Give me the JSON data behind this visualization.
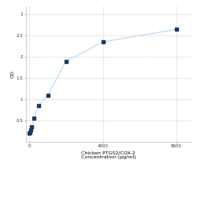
{
  "x": [
    0,
    31.25,
    62.5,
    125,
    250,
    500,
    1000,
    2000,
    4000,
    8000
  ],
  "y": [
    0.2,
    0.23,
    0.27,
    0.35,
    0.55,
    0.85,
    1.1,
    1.9,
    2.35,
    2.65
  ],
  "line_color": "#b8d8f0",
  "marker_color": "#1a3a6b",
  "marker_size": 3,
  "marker_style": "s",
  "ylabel": "OD",
  "xlabel_line1": "Chicken PTGS2/COX-2",
  "xlabel_line2": "Concentration (pg/ml)",
  "xlim": [
    -200,
    8800
  ],
  "ylim": [
    0.0,
    3.2
  ],
  "yticks": [
    0.5,
    1.0,
    1.5,
    2.0,
    2.5,
    3.0
  ],
  "ytick_labels": [
    "0.5",
    "1",
    "1.5",
    "2",
    "2.5",
    "3"
  ],
  "xticks": [
    0,
    4000,
    8000
  ],
  "xtick_labels": [
    "0",
    "4000",
    "8000"
  ],
  "grid_color": "#d0d0d0",
  "grid_style": "--",
  "background_color": "#ffffff",
  "label_fontsize": 4.5,
  "tick_fontsize": 4.0,
  "fig_width": 2.5,
  "fig_height": 2.5,
  "dpi": 100
}
